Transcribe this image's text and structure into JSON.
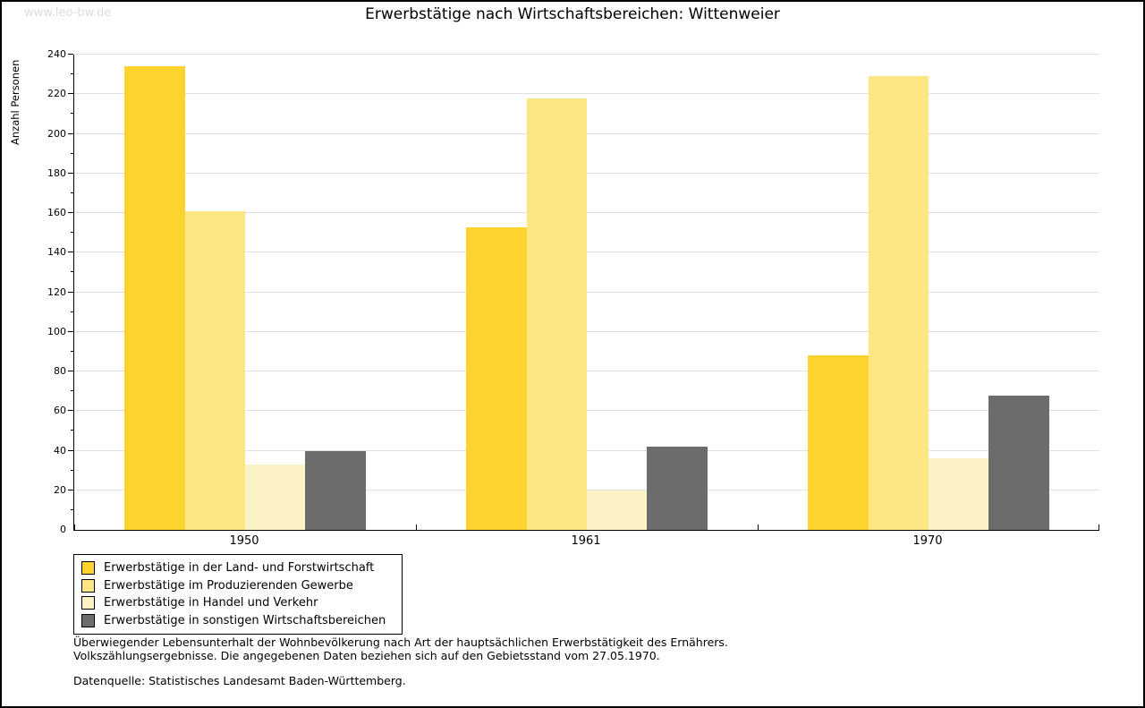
{
  "watermark": "www.leo-bw.de",
  "title": "Erwerbstätige nach Wirtschaftsbereichen: Wittenweier",
  "chart_data": {
    "type": "bar",
    "title": "Erwerbstätige nach Wirtschaftsbereichen: Wittenweier",
    "ylabel": "Anzahl Personen",
    "xlabel": "",
    "categories": [
      "1950",
      "1961",
      "1970"
    ],
    "series": [
      {
        "name": "Erwerbstätige in der Land- und Forstwirtschaft",
        "color": "#FCD42D",
        "values": [
          234,
          153,
          88
        ]
      },
      {
        "name": "Erwerbstätige im Produzierenden Gewerbe",
        "color": "#FBE683",
        "values": [
          161,
          218,
          229
        ]
      },
      {
        "name": "Erwerbstätige in Handel und Verkehr",
        "color": "#FBF2C6",
        "values": [
          33,
          20,
          36
        ]
      },
      {
        "name": "Erwerbstätige in sonstigen Wirtschaftsbereichen",
        "color": "#6C6C6C",
        "values": [
          40,
          42,
          68
        ]
      }
    ],
    "ylim": [
      0,
      240
    ],
    "ytick_step": 20,
    "minor_tick_step": 10,
    "grid": true,
    "legend_position": "bottom-left"
  },
  "footer": {
    "note_line1": "Überwiegender Lebensunterhalt der Wohnbevölkerung nach Art der hauptsächlichen Erwerbstätigkeit des Ernährers.",
    "note_line2": "Volkszählungsergebnisse. Die angegebenen Daten beziehen sich auf den Gebietsstand vom 27.05.1970.",
    "source": "Datenquelle: Statistisches Landesamt Baden-Württemberg."
  },
  "colors": {
    "grid": "#E0E0E0",
    "axis": "#000000",
    "watermark": "#DCDCDC",
    "background": "#FFFFFF"
  }
}
